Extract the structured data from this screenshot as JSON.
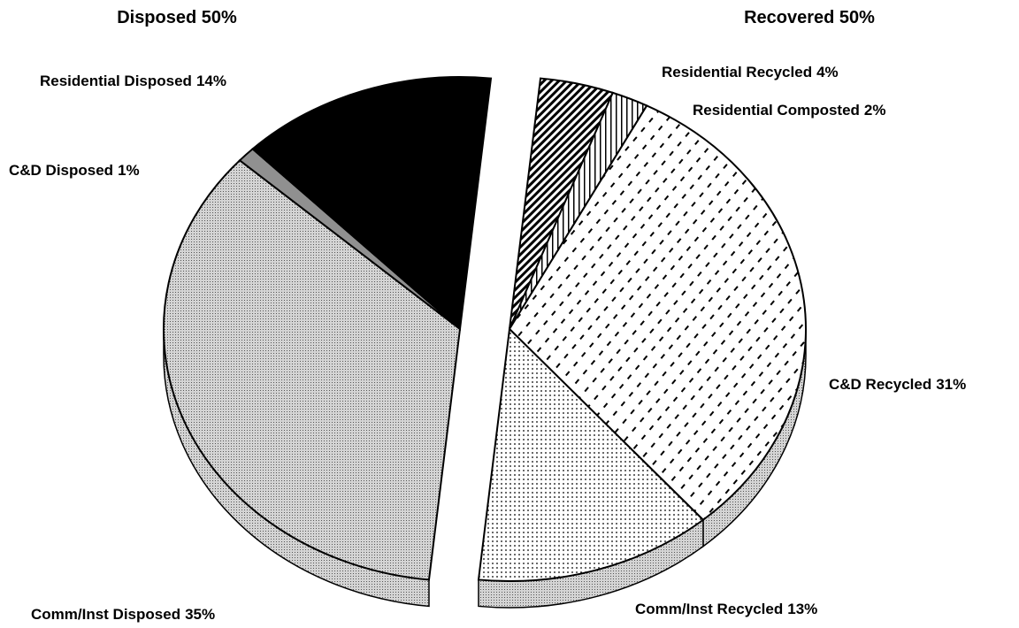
{
  "chart_data": {
    "type": "pie",
    "group_titles": [
      "Disposed 50%",
      "Recovered 50%"
    ],
    "categories": [
      "Residential Recycled",
      "Residential Composted",
      "C&D Recycled",
      "Comm/Inst Recycled",
      "Comm/Inst Disposed",
      "C&D Disposed",
      "Residential Disposed"
    ],
    "values": [
      4,
      2,
      31,
      13,
      35,
      1,
      14
    ],
    "value_labels": [
      "4%",
      "2%",
      "31%",
      "13%",
      "35%",
      "1%",
      "14%"
    ],
    "colors": [
      "#ffffff",
      "#ffffff",
      "#ffffff",
      "#ffffff",
      "#c8c8c8",
      "#909090",
      "#000000"
    ],
    "patterns": [
      "hatch",
      "vlines",
      "dashes",
      "dots",
      "stipple",
      "solid",
      "solid"
    ]
  }
}
